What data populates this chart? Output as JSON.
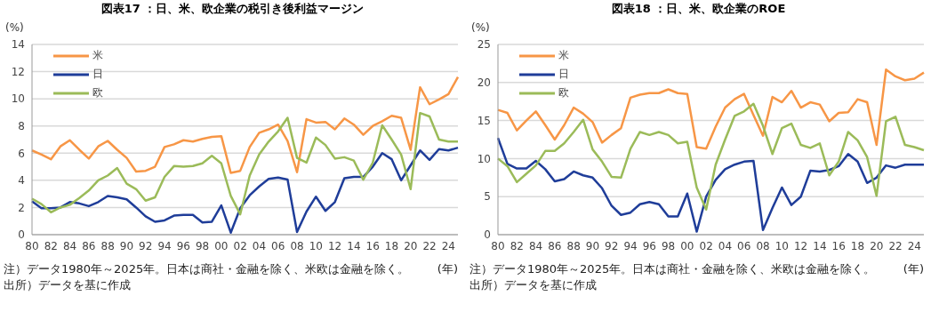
{
  "chart_data": [
    {
      "type": "line",
      "title": "図表17 ：日、米、欧企業の税引き後利益マージン",
      "ylabel": "(%)",
      "xlabel": "(年)",
      "categories": [
        "80",
        null,
        "82",
        null,
        "84",
        null,
        "86",
        null,
        "88",
        null,
        "90",
        null,
        "92",
        null,
        "94",
        null,
        "96",
        null,
        "98",
        null,
        "00",
        null,
        "02",
        null,
        "04",
        null,
        "06",
        null,
        "08",
        null,
        "10",
        null,
        "12",
        null,
        "14",
        null,
        "16",
        null,
        "18",
        null,
        "20",
        null,
        "22",
        null,
        "24",
        null
      ],
      "series": [
        {
          "name": "米",
          "color": "#f79646",
          "values": [
            6.2,
            5.9,
            5.55,
            6.5,
            6.95,
            6.25,
            5.6,
            6.5,
            6.9,
            6.25,
            5.65,
            4.65,
            4.7,
            5.0,
            6.45,
            6.65,
            6.95,
            6.85,
            7.05,
            7.2,
            7.25,
            4.55,
            4.7,
            6.45,
            7.5,
            7.75,
            8.1,
            6.9,
            4.6,
            8.5,
            8.25,
            8.3,
            7.75,
            8.55,
            8.1,
            7.35,
            8.0,
            8.35,
            8.75,
            8.6,
            6.25,
            10.85,
            9.6,
            9.95,
            10.35,
            11.6
          ]
        },
        {
          "name": "日",
          "color": "#1f3d99",
          "values": [
            2.45,
            1.95,
            1.95,
            2.0,
            2.4,
            2.3,
            2.1,
            2.4,
            2.85,
            2.75,
            2.6,
            2.0,
            1.35,
            0.95,
            1.05,
            1.4,
            1.45,
            1.45,
            0.9,
            0.95,
            2.15,
            0.15,
            1.95,
            2.9,
            3.55,
            4.1,
            4.2,
            4.05,
            0.2,
            1.7,
            2.8,
            1.75,
            2.4,
            4.15,
            4.25,
            4.25,
            5.0,
            6.0,
            5.55,
            4.0,
            5.1,
            6.2,
            5.5,
            6.3,
            6.2,
            6.4
          ]
        },
        {
          "name": "欧",
          "color": "#9bbb59",
          "values": [
            2.65,
            2.25,
            1.65,
            2.0,
            2.2,
            2.7,
            3.25,
            4.0,
            4.35,
            4.9,
            3.75,
            3.35,
            2.5,
            2.75,
            4.25,
            5.05,
            5.0,
            5.05,
            5.25,
            5.8,
            5.25,
            2.85,
            1.5,
            4.35,
            5.9,
            6.85,
            7.6,
            8.6,
            5.65,
            5.3,
            7.15,
            6.6,
            5.6,
            5.7,
            5.45,
            4.05,
            5.3,
            8.05,
            7.0,
            5.9,
            3.35,
            8.95,
            8.7,
            7.0,
            6.85,
            6.85
          ]
        }
      ],
      "ylim": [
        0,
        14
      ],
      "yticks": [
        0,
        2,
        4,
        6,
        8,
        10,
        12,
        14
      ],
      "grid": "y",
      "legend": "top left",
      "line_style": "solid",
      "marker": "none",
      "annotations": [
        "注）データ1980年～2025年。日本は商社・金融を除く、米欧は金融を除く。",
        "出所）データを基に作成"
      ]
    },
    {
      "type": "line",
      "title": "図表18 ：日、米、欧企業のROE",
      "ylabel": "(%)",
      "xlabel": "(年)",
      "categories": [
        "80",
        null,
        "82",
        null,
        "84",
        null,
        "86",
        null,
        "88",
        null,
        "90",
        null,
        "92",
        null,
        "94",
        null,
        "96",
        null,
        "98",
        null,
        "00",
        null,
        "02",
        null,
        "04",
        null,
        "06",
        null,
        "08",
        null,
        "10",
        null,
        "12",
        null,
        "14",
        null,
        "16",
        null,
        "18",
        null,
        "20",
        null,
        "22",
        null,
        "24",
        null
      ],
      "series": [
        {
          "name": "米",
          "color": "#f79646",
          "values": [
            16.4,
            16.0,
            13.7,
            15.0,
            16.2,
            14.4,
            12.5,
            14.4,
            16.7,
            15.9,
            14.8,
            12.1,
            13.1,
            14.0,
            18.0,
            18.4,
            18.6,
            18.6,
            19.1,
            18.6,
            18.5,
            11.5,
            11.3,
            14.2,
            16.7,
            17.8,
            18.5,
            15.7,
            13.0,
            18.1,
            17.4,
            18.9,
            16.7,
            17.4,
            17.1,
            14.9,
            16.0,
            16.1,
            17.8,
            17.4,
            11.8,
            21.7,
            20.8,
            20.3,
            20.5,
            21.3
          ]
        },
        {
          "name": "日",
          "color": "#1f3d99",
          "values": [
            12.7,
            9.3,
            8.7,
            8.7,
            9.7,
            8.6,
            7.0,
            7.3,
            8.3,
            7.8,
            7.5,
            6.1,
            3.8,
            2.6,
            2.9,
            4.0,
            4.3,
            4.0,
            2.4,
            2.4,
            5.4,
            0.4,
            5.0,
            7.2,
            8.6,
            9.2,
            9.6,
            9.7,
            0.6,
            3.5,
            6.2,
            3.9,
            5.0,
            8.4,
            8.3,
            8.5,
            9.0,
            10.6,
            9.6,
            6.8,
            7.5,
            9.1,
            8.8,
            9.2,
            9.2,
            9.2
          ]
        },
        {
          "name": "欧",
          "color": "#9bbb59",
          "values": [
            10.0,
            9.0,
            6.9,
            8.0,
            9.1,
            11.0,
            11.0,
            12.0,
            13.5,
            15.1,
            11.2,
            9.6,
            7.6,
            7.5,
            11.3,
            13.5,
            13.1,
            13.5,
            13.1,
            12.0,
            12.2,
            6.2,
            3.3,
            9.2,
            12.5,
            15.6,
            16.2,
            17.2,
            14.3,
            10.6,
            14.0,
            14.6,
            11.8,
            11.4,
            12.0,
            7.8,
            9.6,
            13.5,
            12.4,
            10.2,
            5.1,
            14.9,
            15.5,
            11.8,
            11.5,
            11.1
          ]
        }
      ],
      "ylim": [
        0,
        25
      ],
      "yticks": [
        0,
        5,
        10,
        15,
        20,
        25
      ],
      "grid": "y",
      "legend": "top left",
      "line_style": "solid",
      "marker": "none",
      "annotations": [
        "注）データ1980年～2025年。日本は商社・金融を除く、米欧は金融を除く。",
        "出所）データを基に作成"
      ]
    }
  ]
}
